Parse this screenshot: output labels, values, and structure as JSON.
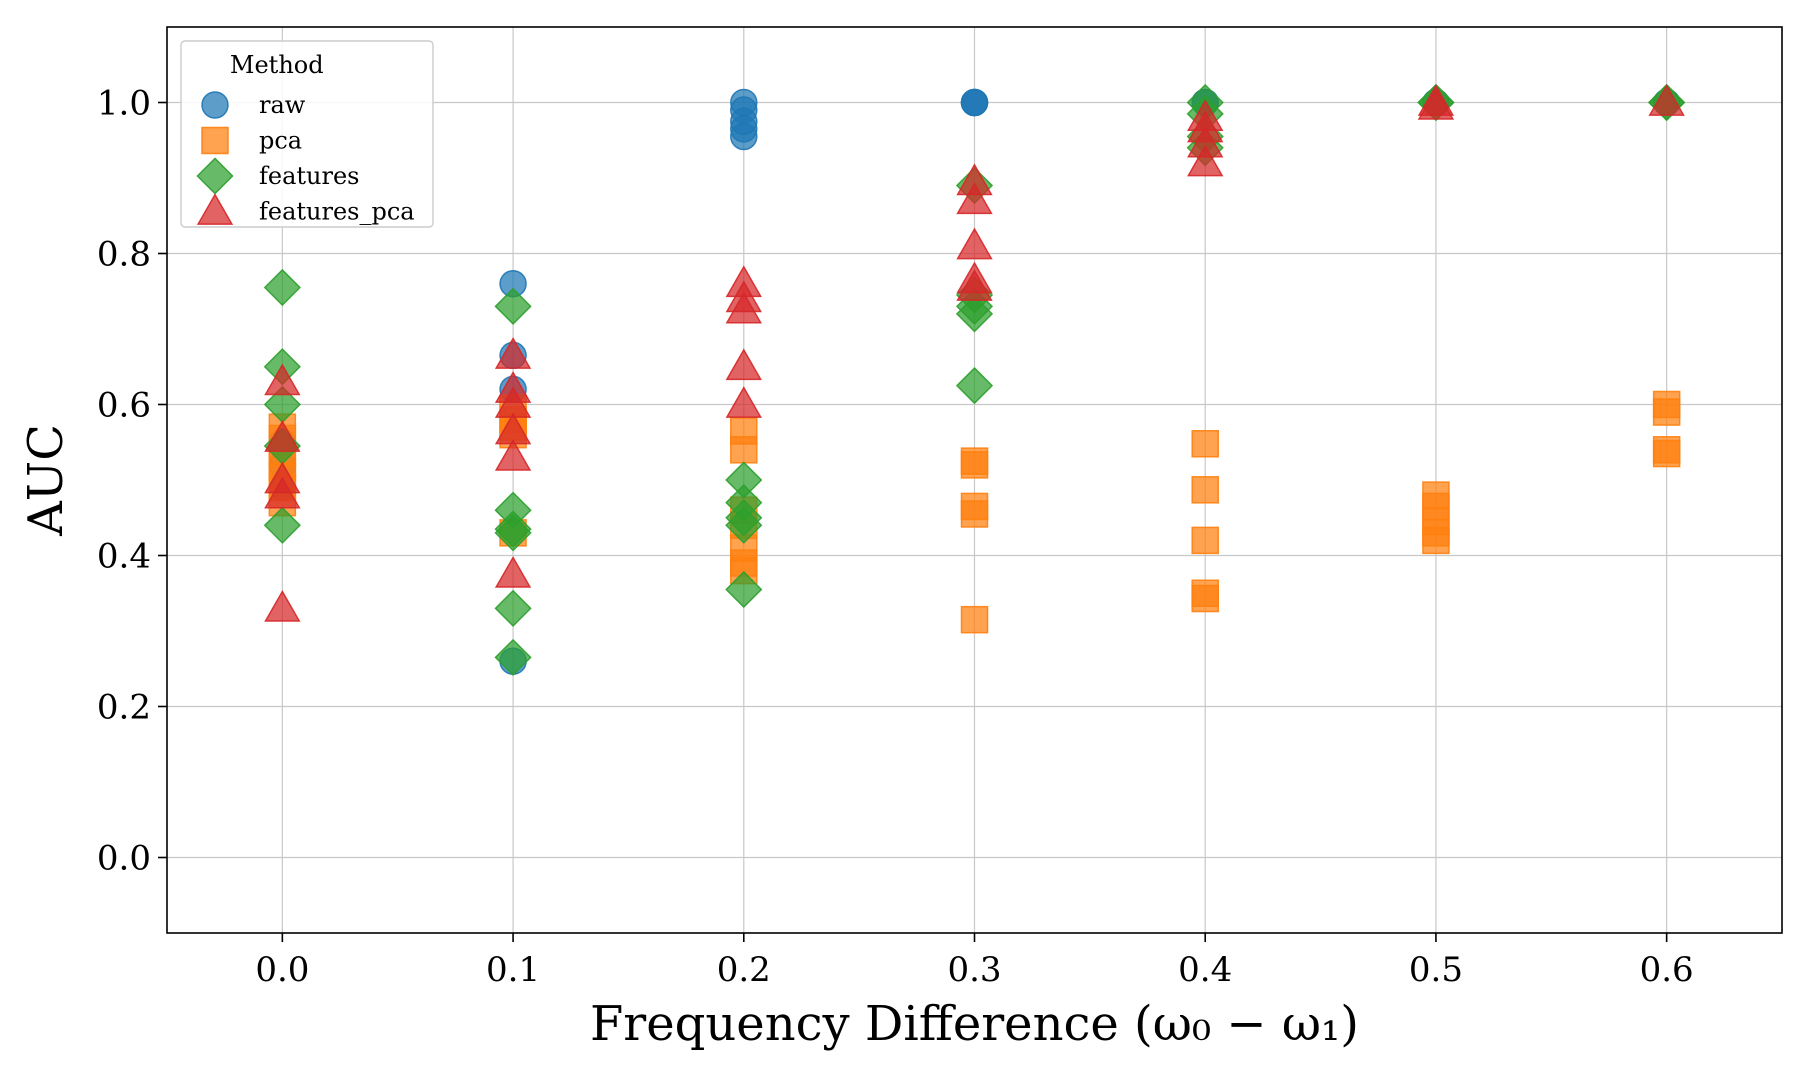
{
  "chart_data": {
    "type": "scatter",
    "title": "",
    "xlabel": "Frequency Difference (ω₀ − ω₁)",
    "ylabel": "AUC",
    "xlim": [
      -0.05,
      0.65
    ],
    "ylim": [
      -0.1,
      1.1
    ],
    "xticks": [
      "0.0",
      "0.1",
      "0.2",
      "0.3",
      "0.4",
      "0.5",
      "0.6"
    ],
    "yticks": [
      "0.0",
      "0.2",
      "0.4",
      "0.6",
      "0.8",
      "1.0"
    ],
    "grid": true,
    "legend": {
      "title": "Method",
      "placement": "upper-left"
    },
    "series": [
      {
        "name": "raw",
        "marker": "circle",
        "color": "#1f77b4",
        "points": [
          [
            0.0,
            0.49
          ],
          [
            0.0,
            0.52
          ],
          [
            0.0,
            0.55
          ],
          [
            0.1,
            0.76
          ],
          [
            0.1,
            0.665
          ],
          [
            0.1,
            0.62
          ],
          [
            0.1,
            0.26
          ],
          [
            0.2,
            1.0
          ],
          [
            0.2,
            0.99
          ],
          [
            0.2,
            0.975
          ],
          [
            0.2,
            0.965
          ],
          [
            0.2,
            0.955
          ],
          [
            0.3,
            1.0
          ],
          [
            0.3,
            1.0
          ],
          [
            0.3,
            1.0
          ],
          [
            0.4,
            1.0
          ],
          [
            0.4,
            1.0
          ],
          [
            0.5,
            1.0
          ],
          [
            0.6,
            1.0
          ]
        ]
      },
      {
        "name": "pca",
        "marker": "square",
        "color": "#ff7f0e",
        "points": [
          [
            0.0,
            0.57
          ],
          [
            0.0,
            0.555
          ],
          [
            0.0,
            0.535
          ],
          [
            0.0,
            0.52
          ],
          [
            0.0,
            0.505
          ],
          [
            0.0,
            0.49
          ],
          [
            0.0,
            0.47
          ],
          [
            0.1,
            0.595
          ],
          [
            0.1,
            0.58
          ],
          [
            0.1,
            0.57
          ],
          [
            0.1,
            0.56
          ],
          [
            0.1,
            0.43
          ],
          [
            0.2,
            0.565
          ],
          [
            0.2,
            0.54
          ],
          [
            0.2,
            0.46
          ],
          [
            0.2,
            0.44
          ],
          [
            0.2,
            0.41
          ],
          [
            0.2,
            0.39
          ],
          [
            0.2,
            0.38
          ],
          [
            0.3,
            0.525
          ],
          [
            0.3,
            0.52
          ],
          [
            0.3,
            0.465
          ],
          [
            0.3,
            0.455
          ],
          [
            0.3,
            0.315
          ],
          [
            0.4,
            0.548
          ],
          [
            0.4,
            0.487
          ],
          [
            0.4,
            0.42
          ],
          [
            0.4,
            0.35
          ],
          [
            0.4,
            0.343
          ],
          [
            0.5,
            0.48
          ],
          [
            0.5,
            0.465
          ],
          [
            0.5,
            0.445
          ],
          [
            0.5,
            0.43
          ],
          [
            0.5,
            0.42
          ],
          [
            0.6,
            0.6
          ],
          [
            0.6,
            0.59
          ],
          [
            0.6,
            0.54
          ],
          [
            0.6,
            0.535
          ]
        ]
      },
      {
        "name": "features",
        "marker": "diamond",
        "color": "#2ca02c",
        "points": [
          [
            0.0,
            0.755
          ],
          [
            0.0,
            0.65
          ],
          [
            0.0,
            0.6
          ],
          [
            0.0,
            0.545
          ],
          [
            0.0,
            0.44
          ],
          [
            0.1,
            0.73
          ],
          [
            0.1,
            0.46
          ],
          [
            0.1,
            0.435
          ],
          [
            0.1,
            0.43
          ],
          [
            0.1,
            0.33
          ],
          [
            0.1,
            0.265
          ],
          [
            0.2,
            0.5
          ],
          [
            0.2,
            0.47
          ],
          [
            0.2,
            0.45
          ],
          [
            0.2,
            0.44
          ],
          [
            0.2,
            0.355
          ],
          [
            0.3,
            0.89
          ],
          [
            0.3,
            0.745
          ],
          [
            0.3,
            0.73
          ],
          [
            0.3,
            0.72
          ],
          [
            0.3,
            0.625
          ],
          [
            0.4,
            1.0
          ],
          [
            0.4,
            0.985
          ],
          [
            0.4,
            0.955
          ],
          [
            0.4,
            0.94
          ],
          [
            0.5,
            1.0
          ],
          [
            0.5,
            1.0
          ],
          [
            0.6,
            1.0
          ],
          [
            0.6,
            1.0
          ]
        ]
      },
      {
        "name": "features_pca",
        "marker": "triangle",
        "color": "#d62728",
        "points": [
          [
            0.0,
            0.63
          ],
          [
            0.0,
            0.555
          ],
          [
            0.0,
            0.5
          ],
          [
            0.0,
            0.48
          ],
          [
            0.0,
            0.33
          ],
          [
            0.1,
            0.665
          ],
          [
            0.1,
            0.62
          ],
          [
            0.1,
            0.6
          ],
          [
            0.1,
            0.565
          ],
          [
            0.1,
            0.53
          ],
          [
            0.1,
            0.375
          ],
          [
            0.2,
            0.76
          ],
          [
            0.2,
            0.74
          ],
          [
            0.2,
            0.725
          ],
          [
            0.2,
            0.65
          ],
          [
            0.2,
            0.6
          ],
          [
            0.3,
            0.895
          ],
          [
            0.3,
            0.87
          ],
          [
            0.3,
            0.81
          ],
          [
            0.3,
            0.765
          ],
          [
            0.3,
            0.755
          ],
          [
            0.4,
            0.98
          ],
          [
            0.4,
            0.965
          ],
          [
            0.4,
            0.945
          ],
          [
            0.4,
            0.92
          ],
          [
            0.5,
            1.0
          ],
          [
            0.5,
            0.995
          ],
          [
            0.6,
            1.0
          ]
        ]
      }
    ]
  }
}
